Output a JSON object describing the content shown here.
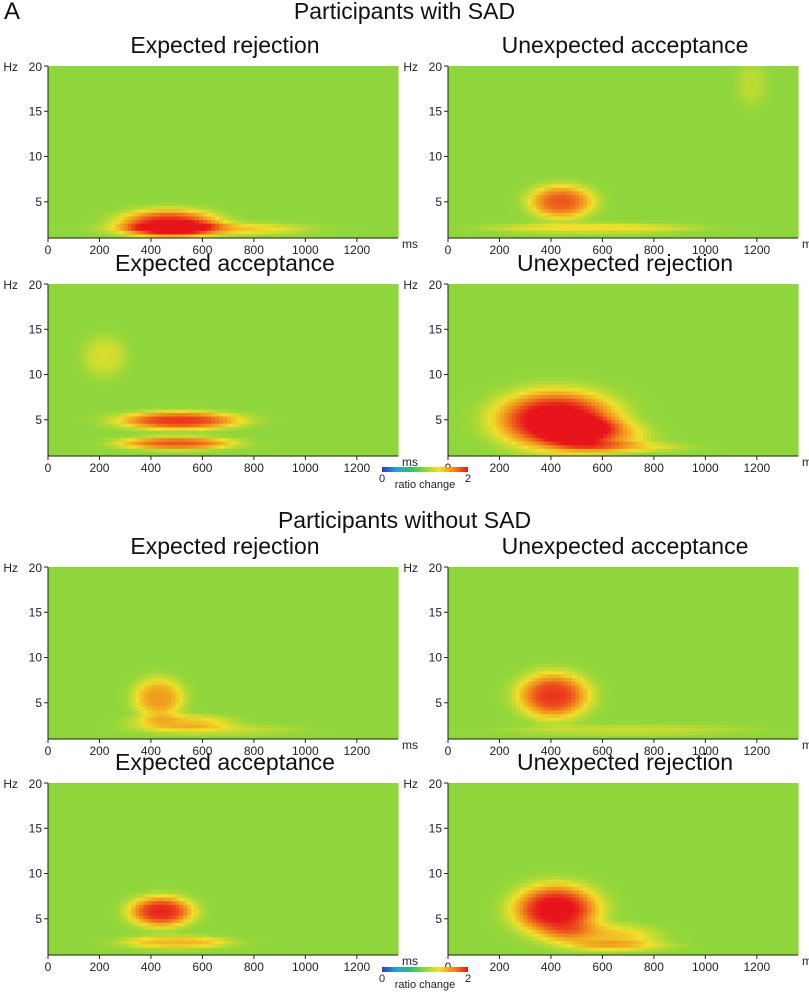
{
  "panel_letter": "A",
  "colorbar": {
    "min_label": "0",
    "label": "ratio change",
    "max_label": "2",
    "colors": [
      "#2b3cc4",
      "#2aa0d8",
      "#30c070",
      "#8fd63c",
      "#f0e02a",
      "#f08a1c",
      "#e8141c"
    ]
  },
  "axis": {
    "x_ticks": [
      0,
      200,
      400,
      600,
      800,
      1000,
      1200
    ],
    "x_unit": "ms",
    "y_ticks": [
      5,
      10,
      15
    ],
    "y_top_label": "20",
    "y_unit": "Hz"
  },
  "groups": [
    {
      "title": "Participants with SAD",
      "panels": [
        {
          "title": "Expected rejection"
        },
        {
          "title": "Unexpected acceptance"
        },
        {
          "title": "Expected acceptance"
        },
        {
          "title": "Unexpected rejection"
        }
      ]
    },
    {
      "title": "Participants without SAD",
      "panels": [
        {
          "title": "Expected rejection"
        },
        {
          "title": "Unexpected acceptance"
        },
        {
          "title": "Expected acceptance"
        },
        {
          "title": "Unexpected rejection"
        }
      ]
    }
  ],
  "chart_data": [
    {
      "type": "heatmap",
      "title": "Expected rejection",
      "group": "Participants with SAD",
      "xlabel": "ms",
      "ylabel": "Hz",
      "xlim": [
        0,
        1360
      ],
      "ylim": [
        1,
        20
      ],
      "value_range": [
        0,
        2
      ],
      "baseline": 1,
      "blobs": [
        {
          "t": 470,
          "f": 2.6,
          "st": 140,
          "sf": 1.1,
          "v": 1.95
        },
        {
          "t": 620,
          "f": 2.0,
          "st": 260,
          "sf": 0.5,
          "v": 1.45
        }
      ]
    },
    {
      "type": "heatmap",
      "title": "Unexpected acceptance",
      "group": "Participants with SAD",
      "xlabel": "ms",
      "ylabel": "Hz",
      "xlim": [
        0,
        1360
      ],
      "ylim": [
        1,
        20
      ],
      "value_range": [
        0,
        2
      ],
      "baseline": 1,
      "blobs": [
        {
          "t": 440,
          "f": 5.0,
          "st": 90,
          "sf": 1.3,
          "v": 1.8
        },
        {
          "t": 560,
          "f": 2.1,
          "st": 280,
          "sf": 0.4,
          "v": 1.35
        },
        {
          "t": 1180,
          "f": 18,
          "st": 40,
          "sf": 1.8,
          "v": 1.15
        }
      ]
    },
    {
      "type": "heatmap",
      "title": "Expected acceptance",
      "group": "Participants with SAD",
      "xlabel": "ms",
      "ylabel": "Hz",
      "xlim": [
        0,
        1360
      ],
      "ylim": [
        1,
        20
      ],
      "value_range": [
        0,
        2
      ],
      "baseline": 1,
      "blobs": [
        {
          "t": 510,
          "f": 4.9,
          "st": 170,
          "sf": 0.7,
          "v": 1.9
        },
        {
          "t": 500,
          "f": 2.4,
          "st": 160,
          "sf": 0.5,
          "v": 1.8
        },
        {
          "t": 220,
          "f": 12,
          "st": 60,
          "sf": 1.6,
          "v": 1.25
        }
      ]
    },
    {
      "type": "heatmap",
      "title": "Unexpected rejection",
      "group": "Participants with SAD",
      "xlabel": "ms",
      "ylabel": "Hz",
      "xlim": [
        0,
        1360
      ],
      "ylim": [
        1,
        20
      ],
      "value_range": [
        0,
        2
      ],
      "baseline": 1,
      "blobs": [
        {
          "t": 420,
          "f": 5.0,
          "st": 170,
          "sf": 2.3,
          "v": 2.1
        },
        {
          "t": 580,
          "f": 3.2,
          "st": 140,
          "sf": 1.3,
          "v": 1.5
        },
        {
          "t": 700,
          "f": 2.0,
          "st": 160,
          "sf": 0.4,
          "v": 1.3
        }
      ]
    },
    {
      "type": "heatmap",
      "title": "Expected rejection",
      "group": "Participants without SAD",
      "xlabel": "ms",
      "ylabel": "Hz",
      "xlim": [
        0,
        1360
      ],
      "ylim": [
        1,
        20
      ],
      "value_range": [
        0,
        2
      ],
      "baseline": 1,
      "blobs": [
        {
          "t": 430,
          "f": 5.5,
          "st": 70,
          "sf": 1.6,
          "v": 1.6
        },
        {
          "t": 520,
          "f": 2.8,
          "st": 140,
          "sf": 0.6,
          "v": 1.45
        },
        {
          "t": 650,
          "f": 2.0,
          "st": 220,
          "sf": 0.4,
          "v": 1.2
        }
      ]
    },
    {
      "type": "heatmap",
      "title": "Unexpected acceptance",
      "group": "Participants without SAD",
      "xlabel": "ms",
      "ylabel": "Hz",
      "xlim": [
        0,
        1360
      ],
      "ylim": [
        1,
        20
      ],
      "value_range": [
        0,
        2
      ],
      "baseline": 1,
      "blobs": [
        {
          "t": 410,
          "f": 5.8,
          "st": 100,
          "sf": 1.8,
          "v": 1.9
        },
        {
          "t": 700,
          "f": 2.0,
          "st": 320,
          "sf": 0.4,
          "v": 1.2
        }
      ]
    },
    {
      "type": "heatmap",
      "title": "Expected acceptance",
      "group": "Participants without SAD",
      "xlabel": "ms",
      "ylabel": "Hz",
      "xlim": [
        0,
        1360
      ],
      "ylim": [
        1,
        20
      ],
      "value_range": [
        0,
        2
      ],
      "baseline": 1,
      "blobs": [
        {
          "t": 440,
          "f": 5.8,
          "st": 90,
          "sf": 1.2,
          "v": 1.95
        },
        {
          "t": 500,
          "f": 2.4,
          "st": 150,
          "sf": 0.5,
          "v": 1.5
        }
      ]
    },
    {
      "type": "heatmap",
      "title": "Unexpected rejection",
      "group": "Participants without SAD",
      "xlabel": "ms",
      "ylabel": "Hz",
      "xlim": [
        0,
        1360
      ],
      "ylim": [
        1,
        20
      ],
      "value_range": [
        0,
        2
      ],
      "baseline": 1,
      "blobs": [
        {
          "t": 420,
          "f": 6.0,
          "st": 120,
          "sf": 2.0,
          "v": 2.05
        },
        {
          "t": 600,
          "f": 3.0,
          "st": 150,
          "sf": 1.0,
          "v": 1.45
        },
        {
          "t": 680,
          "f": 2.0,
          "st": 150,
          "sf": 0.4,
          "v": 1.25
        }
      ]
    }
  ]
}
